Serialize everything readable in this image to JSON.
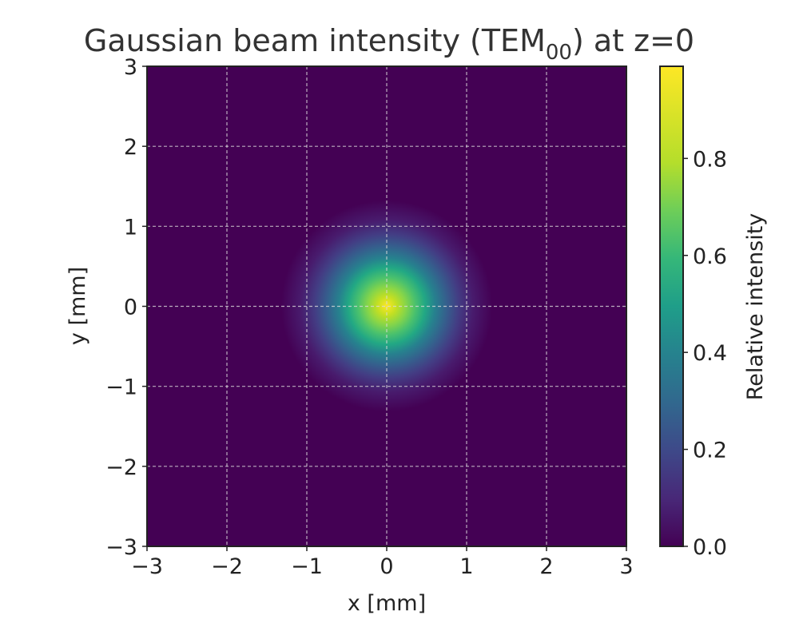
{
  "chart_data": {
    "type": "heatmap",
    "title": "Gaussian beam intensity (TEM",
    "title_subscript": "00",
    "title_suffix": ") at z=0",
    "xlabel": "x [mm]",
    "ylabel": "y [mm]",
    "xlim": [
      -3,
      3
    ],
    "ylim": [
      -3,
      3
    ],
    "x_ticks": [
      -3,
      -2,
      -1,
      0,
      1,
      2,
      3
    ],
    "y_ticks": [
      -3,
      -2,
      -1,
      0,
      1,
      2,
      3
    ],
    "x_tick_labels": [
      "−3",
      "−2",
      "−1",
      "0",
      "1",
      "2",
      "3"
    ],
    "y_tick_labels": [
      "−3",
      "−2",
      "−1",
      "0",
      "1",
      "2",
      "3"
    ],
    "grid": true,
    "beam": {
      "center_x": 0,
      "center_y": 0,
      "waist_radius_mm": 0.5,
      "peak": 1.0
    },
    "colormap": "viridis",
    "colorbar": {
      "label": "Relative intensity",
      "range": [
        0.0,
        0.99
      ],
      "ticks": [
        0.0,
        0.2,
        0.4,
        0.6,
        0.8
      ],
      "tick_labels": [
        "0.0",
        "0.2",
        "0.4",
        "0.6",
        "0.8"
      ]
    }
  }
}
